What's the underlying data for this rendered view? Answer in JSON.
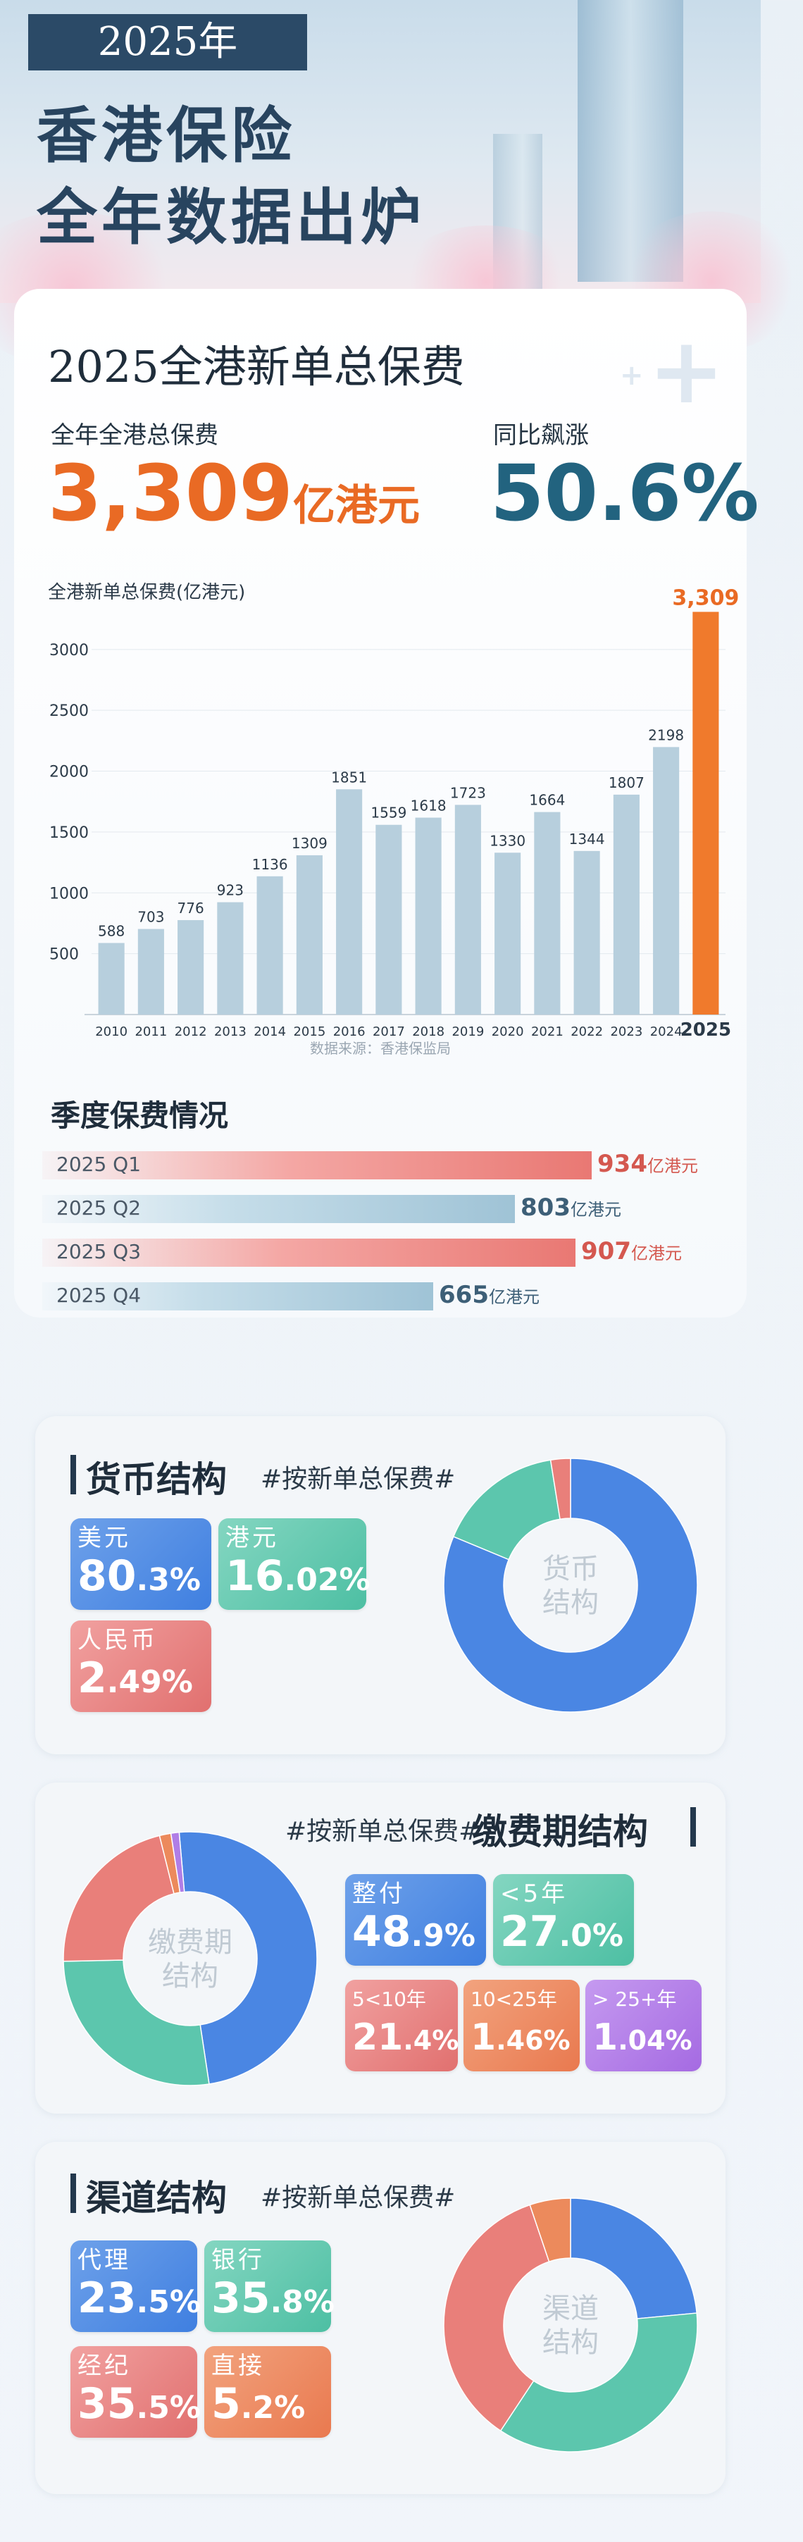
{
  "hero": {
    "year": "2025年",
    "title_line1": "香港保险",
    "title_line2": "全年数据出炉"
  },
  "overview": {
    "section_title": "2025全港新单总保费",
    "total_label": "全年全港总保费",
    "total_value": "3,309",
    "total_unit": "亿港元",
    "growth_label": "同比飙涨",
    "growth_value": "50.6%",
    "source": "数据来源：香港保监局"
  },
  "chart_data": [
    {
      "type": "bar",
      "ylabel": "全港新单总保费(亿港元)",
      "categories": [
        "2010",
        "2011",
        "2012",
        "2013",
        "2014",
        "2015",
        "2016",
        "2017",
        "2018",
        "2019",
        "2020",
        "2021",
        "2022",
        "2023",
        "2024",
        "2025"
      ],
      "values": [
        588,
        703,
        776,
        923,
        1136,
        1309,
        1851,
        1559,
        1618,
        1723,
        1330,
        1664,
        1344,
        1807,
        2198,
        3309
      ],
      "value_labels": [
        "588",
        "703",
        "776",
        "923",
        "1136",
        "1309",
        "1851",
        "1559",
        "1618",
        "1723",
        "1330",
        "1664",
        "1344",
        "1807",
        "2198",
        "3,309"
      ],
      "yticks": [
        500,
        1000,
        1500,
        2000,
        2500,
        3000
      ],
      "ylim": [
        0,
        3300
      ],
      "highlight_color": "#f07a2c",
      "bar_color": "#b7cfdd",
      "grid": true
    },
    {
      "type": "bar",
      "title": "季度保费情况",
      "orientation": "horizontal",
      "categories": [
        "2025 Q1",
        "2025 Q2",
        "2025 Q3",
        "2025 Q4"
      ],
      "values": [
        934,
        803,
        907,
        665
      ],
      "unit": "亿港元",
      "colors": [
        "red",
        "blue",
        "red",
        "blue"
      ]
    },
    {
      "type": "pie",
      "title": "货币结构",
      "subtitle": "#按新单总保费#",
      "center_label": "货币\n结构",
      "categories": [
        "美元",
        "港元",
        "人民币"
      ],
      "values": [
        80.3,
        16.02,
        2.49
      ],
      "colors": [
        "#4a86e3",
        "#5cc6ad",
        "#e97f7a"
      ]
    },
    {
      "type": "pie",
      "title": "缴费期结构",
      "subtitle": "#按新单总保费#",
      "center_label": "缴费期\n结构",
      "categories": [
        "整付",
        "<5年",
        "5<10年",
        "10<25年",
        "> 25+年"
      ],
      "values": [
        48.9,
        27.0,
        21.4,
        1.46,
        1.04
      ],
      "colors": [
        "#4a86e3",
        "#5cc6ad",
        "#e97f7a",
        "#ec8a5c",
        "#b07ee6"
      ]
    },
    {
      "type": "pie",
      "title": "渠道结构",
      "subtitle": "#按新单总保费#",
      "center_label": "渠道\n结构",
      "categories": [
        "代理",
        "银行",
        "经纪",
        "直接"
      ],
      "values": [
        23.5,
        35.8,
        35.5,
        5.2
      ],
      "colors": [
        "#4a86e3",
        "#5cc6ad",
        "#e97f7a",
        "#ec8a5c"
      ]
    }
  ],
  "currency": {
    "title": "货币结构",
    "subtitle": "#按新单总保费#",
    "center1": "货币",
    "center2": "结构",
    "tiles": [
      {
        "label": "美元",
        "int": "80",
        "dec": ".3%"
      },
      {
        "label": "港元",
        "int": "16",
        "dec": ".02%"
      },
      {
        "label": "人民币",
        "int": "2",
        "dec": ".49%"
      }
    ]
  },
  "term": {
    "title": "缴费期结构",
    "subtitle": "#按新单总保费#",
    "center1": "缴费期",
    "center2": "结构",
    "tiles": [
      {
        "label": "整付",
        "int": "48",
        "dec": ".9%"
      },
      {
        "label": "<5年",
        "int": "27",
        "dec": ".0%"
      },
      {
        "label": "5<10年",
        "int": "21",
        "dec": ".4%"
      },
      {
        "label": "10<25年",
        "int": "1",
        "dec": ".46%"
      },
      {
        "label": "> 25+年",
        "int": "1",
        "dec": ".04%"
      }
    ]
  },
  "channel": {
    "title": "渠道结构",
    "subtitle": "#按新单总保费#",
    "center1": "渠道",
    "center2": "结构",
    "tiles": [
      {
        "label": "代理",
        "int": "23",
        "dec": ".5%"
      },
      {
        "label": "银行",
        "int": "35",
        "dec": ".8%"
      },
      {
        "label": "经纪",
        "int": "35",
        "dec": ".5%"
      },
      {
        "label": "直接",
        "int": "5",
        "dec": ".2%"
      }
    ]
  }
}
